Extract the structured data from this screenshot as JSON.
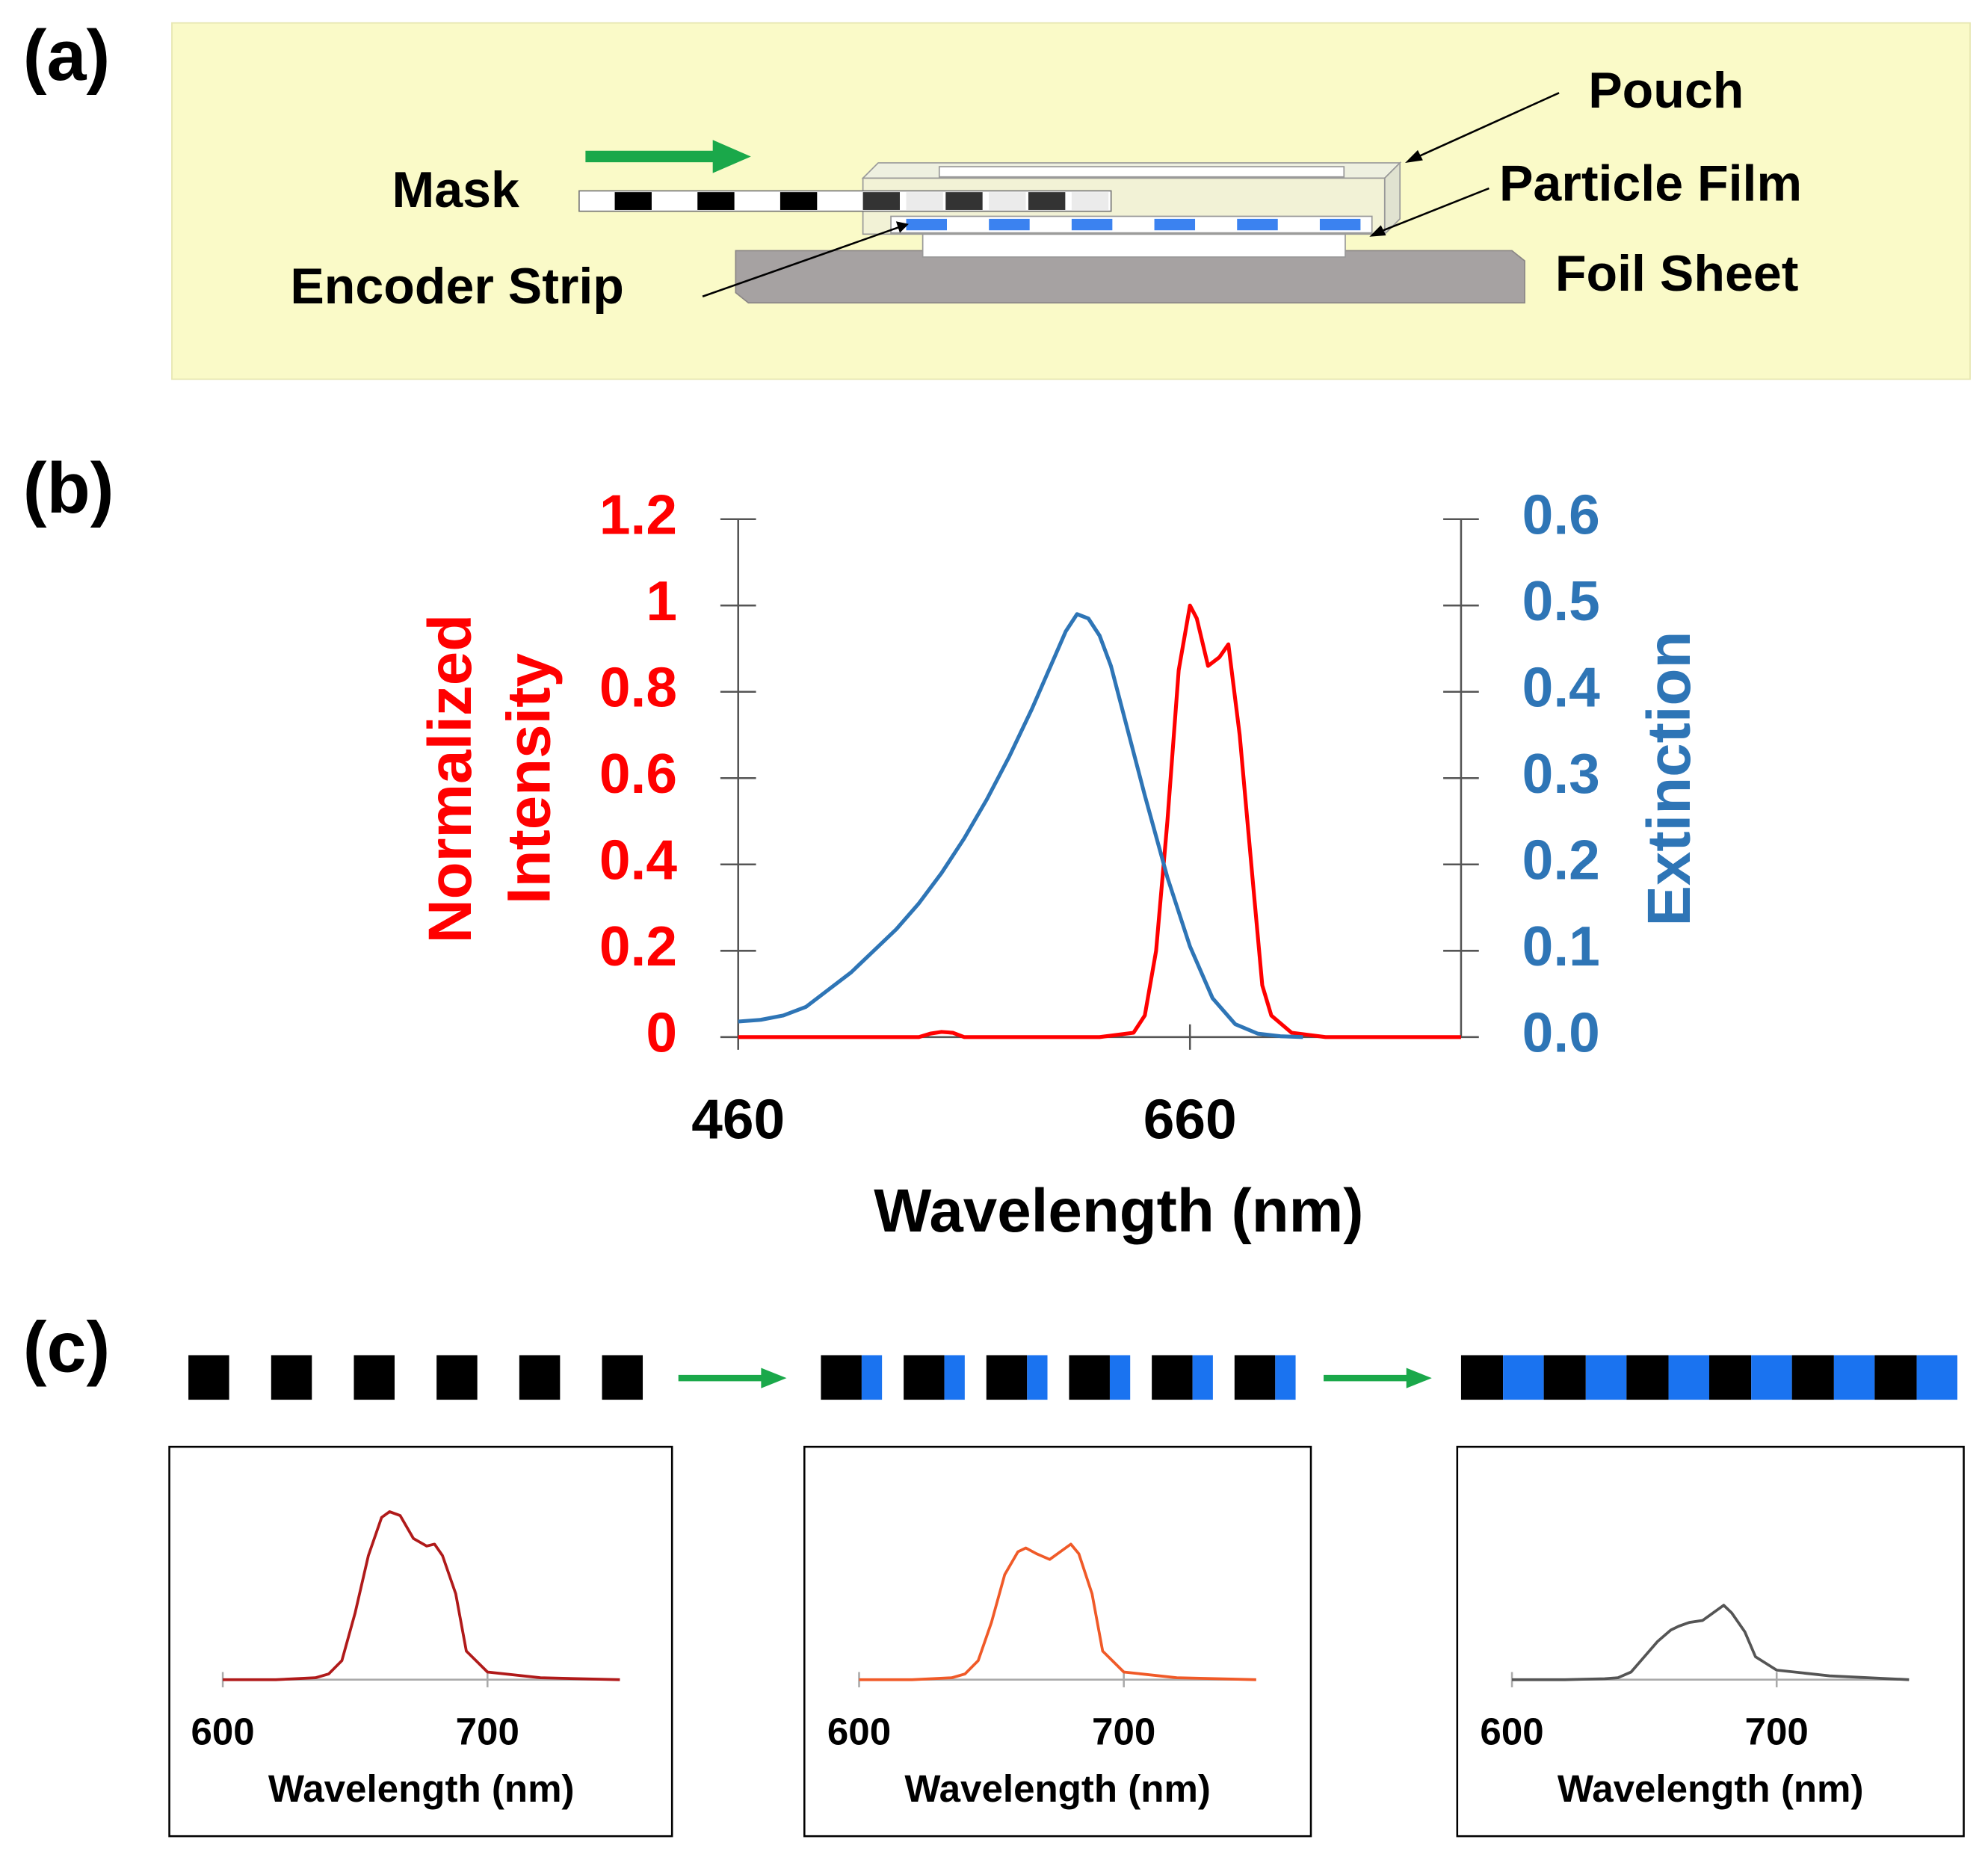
{
  "panel_labels": [
    "(a)",
    "(b)",
    "(c)"
  ],
  "diagram": {
    "pouch": "Pouch",
    "mask": "Mask",
    "particle_film": "Particle Film",
    "encoder_strip": "Encoder Strip",
    "foil_sheet": "Foil Sheet"
  },
  "chart_data": [
    {
      "type": "line",
      "xlabel": "Wavelength (nm)",
      "ylabel": "Normalized Intensity",
      "y2label": "Extinction",
      "xlim": [
        460,
        780
      ],
      "xticks": [
        460,
        660
      ],
      "ylim": [
        0,
        1.2
      ],
      "yticks": [
        0,
        0.2,
        0.4,
        0.6,
        0.8,
        1,
        1.2
      ],
      "y2lim": [
        0,
        0.6
      ],
      "y2ticks": [
        {
          "value": 0,
          "label": "0.0"
        },
        0.1,
        0.2,
        0.3,
        0.4,
        0.5,
        0.6
      ],
      "series": [
        {
          "name": "Normalized Intensity",
          "color": "#ff0000",
          "x": [
            460,
            540,
            545,
            550,
            555,
            560,
            620,
            635,
            640,
            645,
            650,
            655,
            660,
            663,
            668,
            673,
            677,
            682,
            688,
            692,
            696,
            705,
            720,
            780
          ],
          "values": [
            0,
            0,
            0.008,
            0.012,
            0.01,
            0,
            0,
            0.01,
            0.05,
            0.2,
            0.5,
            0.85,
            1.0,
            0.97,
            0.86,
            0.88,
            0.91,
            0.7,
            0.35,
            0.12,
            0.05,
            0.01,
            0,
            0
          ]
        },
        {
          "name": "Extinction",
          "color": "#2e75b6",
          "axis": "y2",
          "x": [
            460,
            470,
            480,
            490,
            500,
            510,
            520,
            530,
            540,
            550,
            560,
            570,
            580,
            590,
            600,
            605,
            610,
            615,
            620,
            625,
            630,
            640,
            650,
            660,
            670,
            680,
            690,
            700,
            710
          ],
          "values": [
            0.018,
            0.02,
            0.025,
            0.035,
            0.055,
            0.075,
            0.1,
            0.125,
            0.155,
            0.19,
            0.23,
            0.275,
            0.325,
            0.38,
            0.44,
            0.47,
            0.49,
            0.485,
            0.465,
            0.43,
            0.38,
            0.28,
            0.185,
            0.105,
            0.045,
            0.015,
            0.004,
            0.001,
            0
          ]
        }
      ]
    },
    {
      "type": "line",
      "xlabel": "Wavelength (nm)",
      "xlim": [
        600,
        750
      ],
      "xticks": [
        600,
        700
      ],
      "ylim": [
        0,
        1
      ],
      "series": [
        {
          "color": "#b01a1a",
          "x": [
            600,
            620,
            635,
            640,
            645,
            650,
            655,
            660,
            663,
            667,
            672,
            677,
            680,
            683,
            688,
            692,
            700,
            720,
            750
          ],
          "values": [
            0,
            0,
            0.01,
            0.03,
            0.1,
            0.35,
            0.65,
            0.85,
            0.88,
            0.86,
            0.74,
            0.7,
            0.71,
            0.65,
            0.45,
            0.15,
            0.04,
            0.01,
            0
          ]
        }
      ]
    },
    {
      "type": "line",
      "xlabel": "Wavelength (nm)",
      "xlim": [
        600,
        750
      ],
      "xticks": [
        600,
        700
      ],
      "ylim": [
        0,
        1
      ],
      "series": [
        {
          "color": "#f05a28",
          "x": [
            600,
            620,
            635,
            640,
            645,
            650,
            655,
            660,
            663,
            667,
            672,
            677,
            680,
            683,
            688,
            692,
            700,
            720,
            750
          ],
          "values": [
            0,
            0,
            0.01,
            0.03,
            0.1,
            0.3,
            0.55,
            0.67,
            0.69,
            0.66,
            0.63,
            0.68,
            0.71,
            0.66,
            0.45,
            0.15,
            0.04,
            0.01,
            0
          ]
        }
      ]
    },
    {
      "type": "line",
      "xlabel": "Wavelength (nm)",
      "xlim": [
        600,
        750
      ],
      "xticks": [
        600,
        700
      ],
      "ylim": [
        0,
        1
      ],
      "series": [
        {
          "color": "#555555",
          "x": [
            600,
            620,
            635,
            640,
            645,
            650,
            655,
            660,
            663,
            667,
            672,
            677,
            680,
            683,
            688,
            692,
            700,
            720,
            750
          ],
          "values": [
            0,
            0,
            0.005,
            0.01,
            0.04,
            0.12,
            0.2,
            0.26,
            0.28,
            0.3,
            0.31,
            0.36,
            0.39,
            0.35,
            0.25,
            0.12,
            0.05,
            0.02,
            0
          ]
        }
      ]
    }
  ]
}
